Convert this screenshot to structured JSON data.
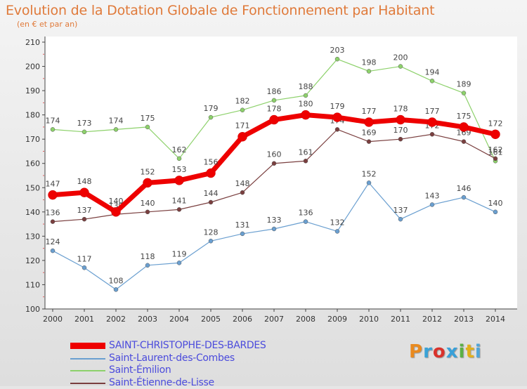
{
  "title": "Evolution de la Dotation Globale de Fonctionnement par Habitant",
  "subtitle": "(en € et par an)",
  "logo": {
    "text": "Proxiti",
    "colors": [
      "#e98a1f",
      "#3aa2d6",
      "#d9322b",
      "#39a0d8",
      "#5bb046",
      "#e2b01c",
      "#4fa6d9"
    ]
  },
  "chart_data": {
    "type": "line",
    "x": [
      2000,
      2001,
      2002,
      2003,
      2004,
      2005,
      2006,
      2007,
      2008,
      2009,
      2010,
      2011,
      2012,
      2013,
      2014
    ],
    "ylim": [
      100,
      210
    ],
    "yticks": [
      100,
      110,
      120,
      130,
      140,
      150,
      160,
      170,
      180,
      190,
      200,
      210
    ],
    "grid": false,
    "legend_position": "bottom",
    "series": [
      {
        "name": "SAINT-CHRISTOPHE-DES-BARDES",
        "color": "#ee0000",
        "values": [
          147,
          148,
          140,
          152,
          153,
          156,
          171,
          178,
          180,
          179,
          177,
          178,
          177,
          175,
          172
        ]
      },
      {
        "name": "Saint-Laurent-des-Combes",
        "color": "#6a9fd0",
        "values": [
          124,
          117,
          108,
          118,
          119,
          128,
          131,
          133,
          136,
          132,
          152,
          137,
          143,
          146,
          140
        ]
      },
      {
        "name": "Saint-Émilion",
        "color": "#8dd16b",
        "values": [
          174,
          173,
          174,
          175,
          162,
          179,
          182,
          186,
          188,
          203,
          198,
          200,
          194,
          189,
          161
        ]
      },
      {
        "name": "Saint-Étienne-de-Lisse",
        "color": "#7a3f3f",
        "values": [
          136,
          137,
          139,
          140,
          141,
          144,
          148,
          160,
          161,
          174,
          169,
          170,
          172,
          169,
          162
        ]
      }
    ]
  }
}
